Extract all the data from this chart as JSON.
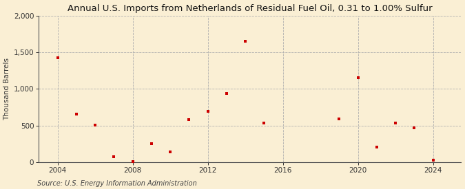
{
  "title": "Annual U.S. Imports from Netherlands of Residual Fuel Oil, 0.31 to 1.00% Sulfur",
  "ylabel": "Thousand Barrels",
  "source": "Source: U.S. Energy Information Administration",
  "background_color": "#faefd4",
  "plot_bg_color": "#faefd4",
  "marker_color": "#cc0000",
  "years": [
    2004,
    2005,
    2006,
    2007,
    2008,
    2009,
    2010,
    2011,
    2012,
    2013,
    2014,
    2015,
    2019,
    2020,
    2021,
    2022,
    2023,
    2024
  ],
  "values": [
    1420,
    660,
    510,
    75,
    10,
    250,
    140,
    580,
    690,
    940,
    1650,
    530,
    590,
    1150,
    210,
    530,
    470,
    30
  ],
  "xlim": [
    2003.0,
    2025.5
  ],
  "ylim": [
    0,
    2000
  ],
  "yticks": [
    0,
    500,
    1000,
    1500,
    2000
  ],
  "xticks": [
    2004,
    2008,
    2012,
    2016,
    2020,
    2024
  ],
  "grid_color": "#b0b0b0",
  "title_fontsize": 9.5,
  "label_fontsize": 7.5,
  "tick_fontsize": 7.5,
  "source_fontsize": 7.0
}
